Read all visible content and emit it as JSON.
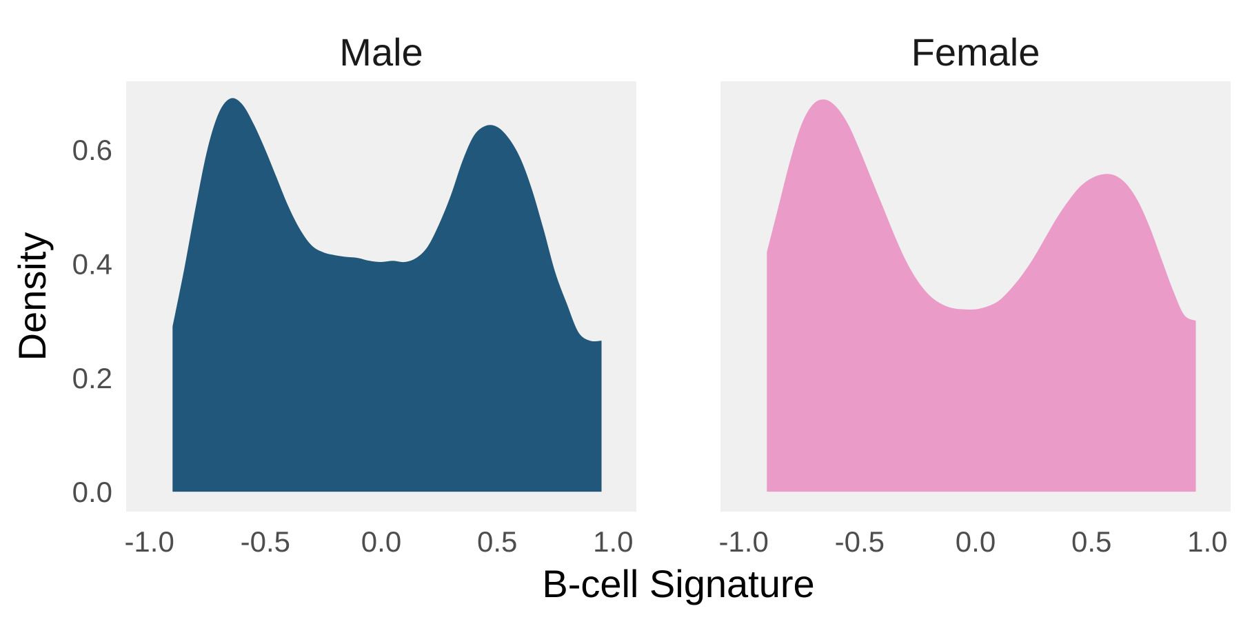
{
  "chart_data": {
    "type": "area",
    "chart_kind": "faceted density plot",
    "xlabel": "B-cell Signature",
    "ylabel": "Density",
    "xlim": [
      -1.1,
      1.1
    ],
    "ylim": [
      -0.035,
      0.72
    ],
    "x_ticks": [
      "-1.0",
      "-0.5",
      "0.0",
      "0.5",
      "1.0"
    ],
    "y_ticks": [
      "0.0",
      "0.2",
      "0.4",
      "0.6"
    ],
    "grid": false,
    "panel_background": "#f0f0f0",
    "legend": "none",
    "facets": [
      {
        "title": "Male",
        "color": "#21577a",
        "x": [
          -0.9,
          -0.85,
          -0.8,
          -0.75,
          -0.7,
          -0.65,
          -0.6,
          -0.55,
          -0.5,
          -0.45,
          -0.4,
          -0.35,
          -0.3,
          -0.25,
          -0.2,
          -0.15,
          -0.1,
          -0.05,
          0.0,
          0.05,
          0.1,
          0.15,
          0.2,
          0.25,
          0.3,
          0.35,
          0.4,
          0.45,
          0.5,
          0.55,
          0.6,
          0.65,
          0.7,
          0.75,
          0.8,
          0.85,
          0.9,
          0.95
        ],
        "y": [
          0.29,
          0.39,
          0.5,
          0.6,
          0.665,
          0.69,
          0.68,
          0.645,
          0.6,
          0.55,
          0.5,
          0.46,
          0.432,
          0.42,
          0.415,
          0.412,
          0.41,
          0.405,
          0.403,
          0.405,
          0.403,
          0.41,
          0.43,
          0.47,
          0.52,
          0.58,
          0.625,
          0.642,
          0.64,
          0.62,
          0.585,
          0.53,
          0.46,
          0.385,
          0.33,
          0.28,
          0.265,
          0.265
        ]
      },
      {
        "title": "Female",
        "color": "#ea9bc8",
        "x": [
          -0.9,
          -0.85,
          -0.8,
          -0.75,
          -0.7,
          -0.65,
          -0.6,
          -0.55,
          -0.5,
          -0.45,
          -0.4,
          -0.35,
          -0.3,
          -0.25,
          -0.2,
          -0.15,
          -0.1,
          -0.05,
          0.0,
          0.05,
          0.1,
          0.15,
          0.2,
          0.25,
          0.3,
          0.35,
          0.4,
          0.45,
          0.5,
          0.55,
          0.6,
          0.65,
          0.7,
          0.75,
          0.8,
          0.85,
          0.9,
          0.95
        ],
        "y": [
          0.42,
          0.5,
          0.58,
          0.645,
          0.68,
          0.688,
          0.675,
          0.645,
          0.6,
          0.55,
          0.5,
          0.45,
          0.405,
          0.37,
          0.345,
          0.33,
          0.322,
          0.32,
          0.32,
          0.325,
          0.335,
          0.355,
          0.38,
          0.41,
          0.445,
          0.48,
          0.51,
          0.535,
          0.55,
          0.557,
          0.555,
          0.54,
          0.51,
          0.465,
          0.41,
          0.355,
          0.31,
          0.3
        ]
      }
    ]
  }
}
